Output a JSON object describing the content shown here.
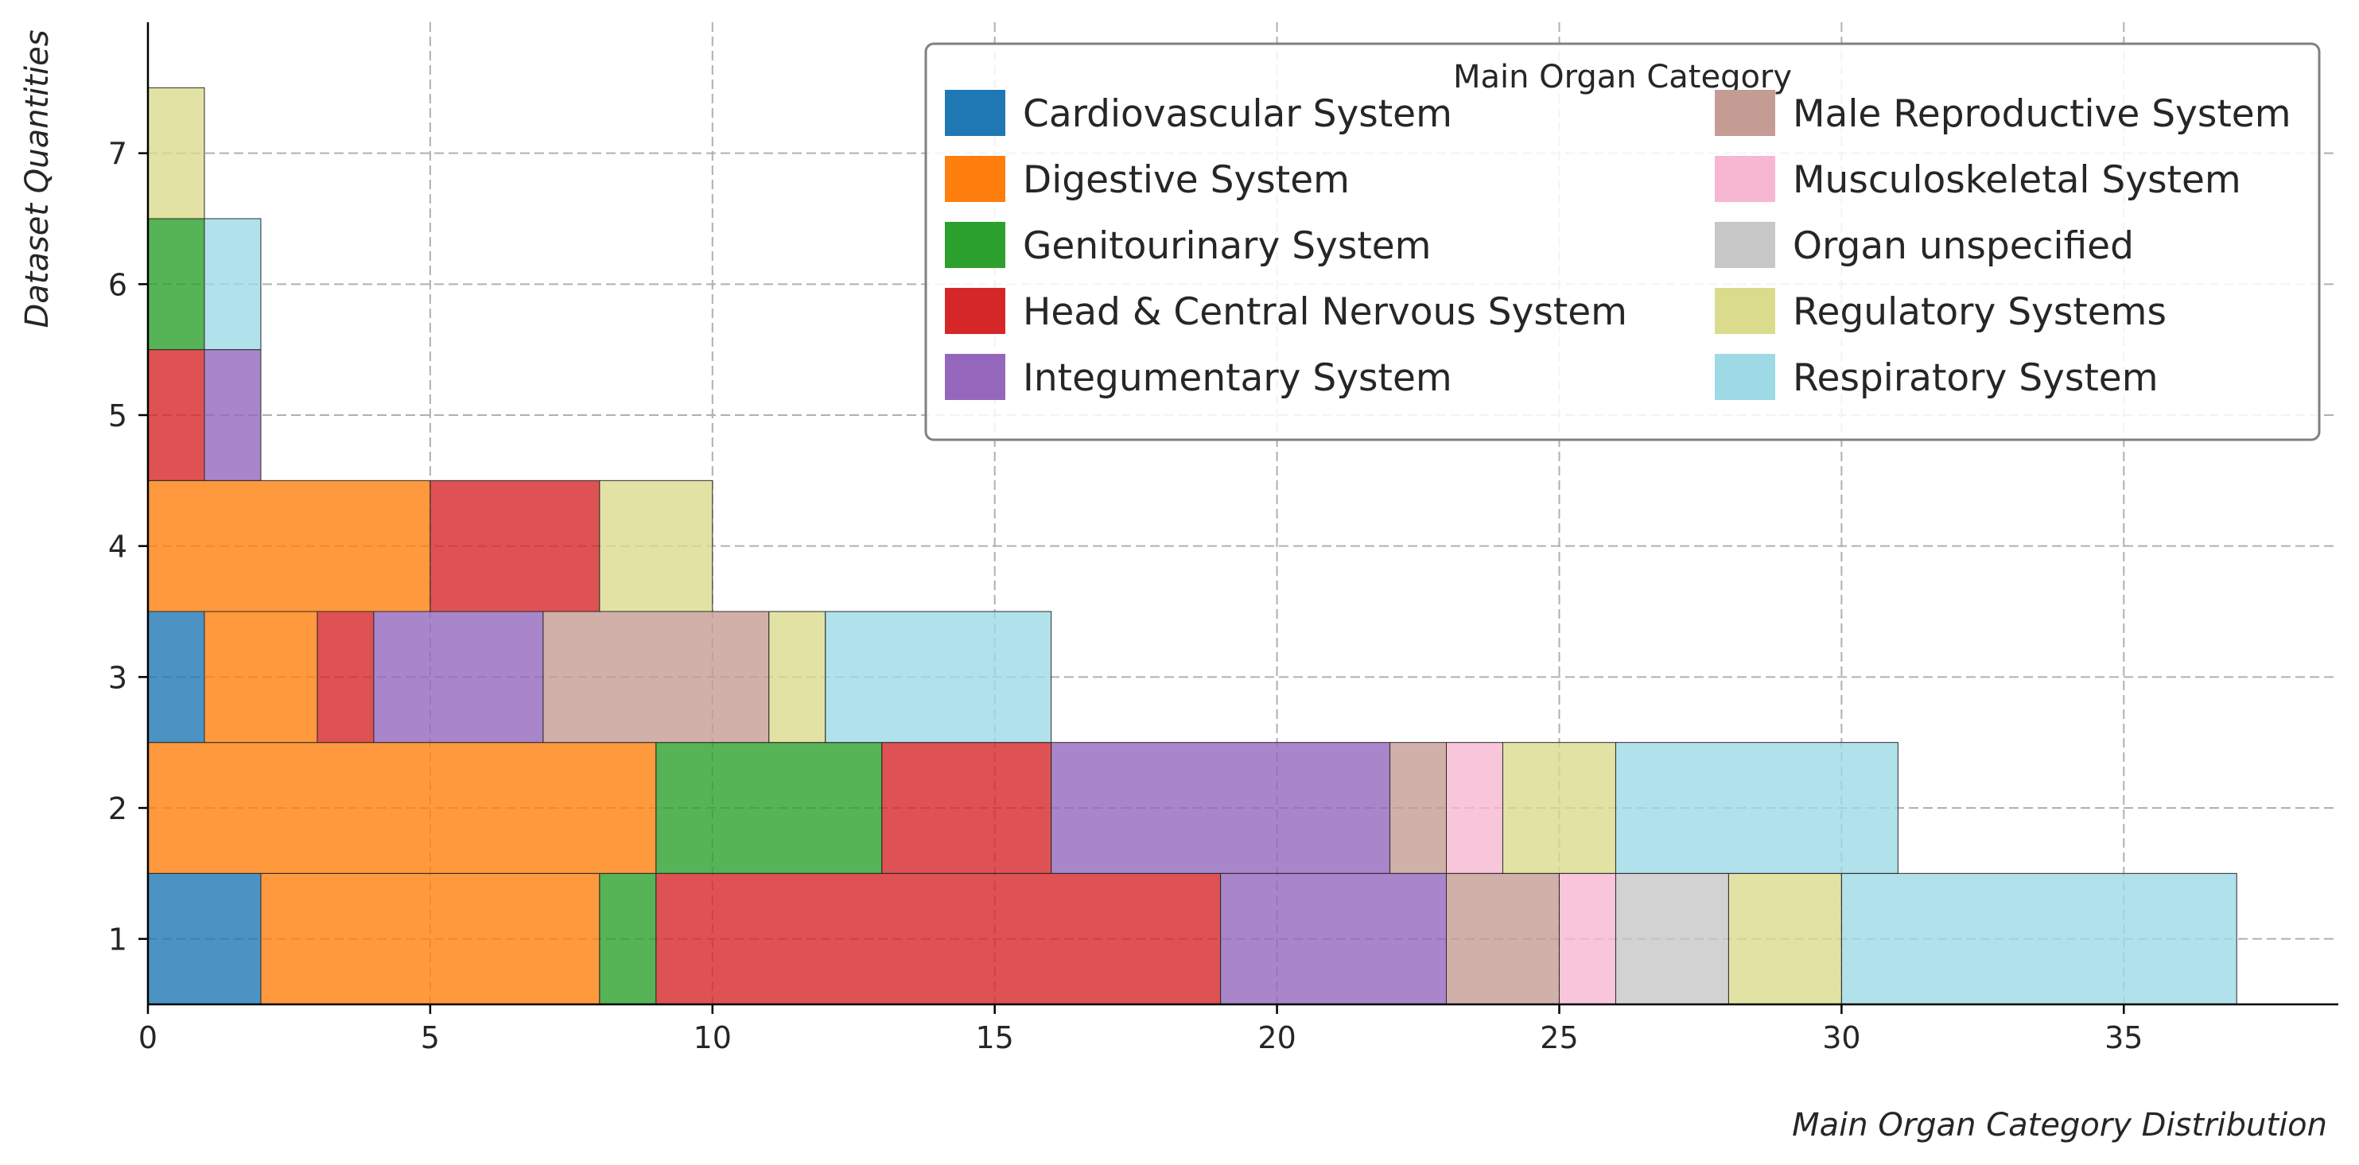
{
  "chart_data": {
    "type": "bar",
    "orientation": "horizontal-stacked",
    "xlabel": "Main Organ Category Distribution",
    "ylabel": "Dataset Quantities",
    "xlim": [
      0,
      38.8
    ],
    "ylim": [
      0.5,
      8.0
    ],
    "x_ticks": [
      0,
      5,
      10,
      15,
      20,
      25,
      30,
      35
    ],
    "categories": [
      1,
      2,
      3,
      4,
      5,
      6,
      7
    ],
    "grid": true,
    "legend": {
      "title": "Main Organ Category",
      "position": "top-right",
      "columns": 2
    },
    "series": [
      {
        "name": "Cardiovascular System",
        "color": "#1f77b4",
        "values": [
          2,
          0,
          1,
          0,
          0,
          0,
          0
        ]
      },
      {
        "name": "Digestive System",
        "color": "#ff7f0e",
        "values": [
          6,
          9,
          2,
          5,
          0,
          0,
          0
        ]
      },
      {
        "name": "Genitourinary System",
        "color": "#2ca02c",
        "values": [
          1,
          4,
          0,
          0,
          0,
          1,
          0
        ]
      },
      {
        "name": "Head & Central Nervous System",
        "color": "#d62728",
        "values": [
          10,
          3,
          1,
          3,
          1,
          0,
          0
        ]
      },
      {
        "name": "Integumentary System",
        "color": "#9467bd",
        "values": [
          4,
          6,
          3,
          0,
          1,
          0,
          0
        ]
      },
      {
        "name": "Male Reproductive System",
        "color": "#c49c94",
        "values": [
          2,
          1,
          4,
          0,
          0,
          0,
          0
        ]
      },
      {
        "name": "Musculoskeletal System",
        "color": "#f7b6d2",
        "values": [
          1,
          1,
          0,
          0,
          0,
          0,
          0
        ]
      },
      {
        "name": "Organ unspecified",
        "color": "#c7c7c7",
        "values": [
          2,
          0,
          0,
          0,
          0,
          0,
          0
        ]
      },
      {
        "name": "Regulatory Systems",
        "color": "#dbdb8d",
        "values": [
          2,
          2,
          1,
          2,
          0,
          0,
          1
        ]
      },
      {
        "name": "Respiratory System",
        "color": "#9edae5",
        "values": [
          7,
          5,
          4,
          0,
          0,
          1,
          0
        ]
      }
    ]
  }
}
